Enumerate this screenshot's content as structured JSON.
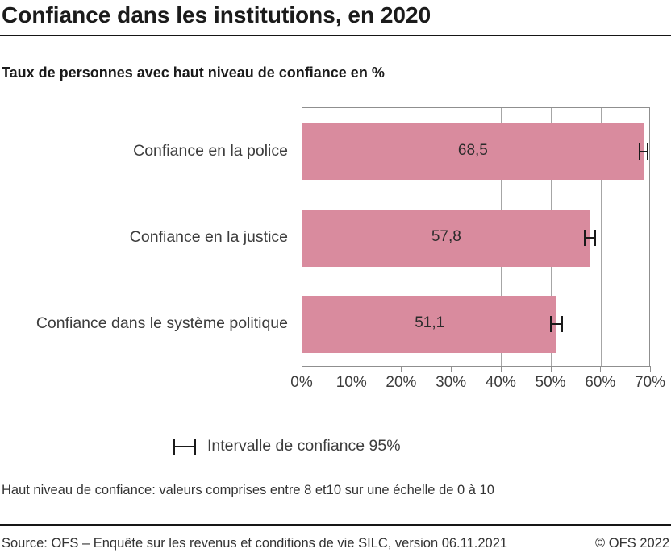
{
  "header": {
    "title": "Confiance dans les institutions, en 2020",
    "subtitle": "Taux de personnes avec haut niveau de confiance en %"
  },
  "chart_data": {
    "type": "bar",
    "orientation": "horizontal",
    "categories": [
      "Confiance en la police",
      "Confiance en la justice",
      "Confiance dans le système politique"
    ],
    "values": [
      68.5,
      57.8,
      51.1
    ],
    "value_labels": [
      "68,5",
      "57,8",
      "51,1"
    ],
    "ci_half_width_pct": [
      1.0,
      1.2,
      1.3
    ],
    "xlim": [
      0,
      70
    ],
    "x_tick_values": [
      0,
      10,
      20,
      30,
      40,
      50,
      60,
      70
    ],
    "x_tick_labels": [
      "0%",
      "10%",
      "20%",
      "30%",
      "40%",
      "50%",
      "60%",
      "70%"
    ],
    "grid": "vertical",
    "bar_color": "#d98b9e",
    "legend": {
      "marker": "error-bar",
      "label": "Intervalle de confiance 95%",
      "position": "below-chart"
    }
  },
  "note": "Haut niveau de confiance: valeurs comprises entre 8 et10 sur une échelle de 0 à 10",
  "footer": {
    "source": "Source: OFS – Enquête sur les revenus et conditions de vie SILC, version 06.11.2021",
    "copyright": "© OFS 2022"
  }
}
